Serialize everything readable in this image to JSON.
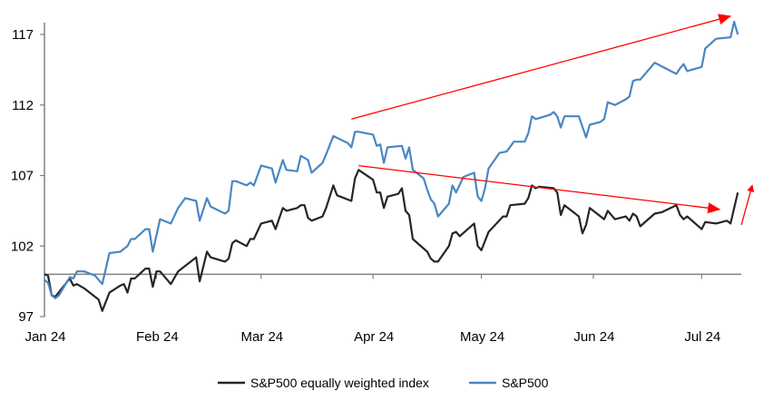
{
  "chart_data": {
    "type": "line",
    "title": "",
    "xlabel": "",
    "ylabel": "",
    "ylim": [
      97,
      118
    ],
    "xlim": [
      "2024-01-01",
      "2024-07-14"
    ],
    "yticks": [
      97,
      102,
      107,
      112,
      117
    ],
    "ytick_labels": [
      "97",
      "102",
      "107",
      "112",
      "117"
    ],
    "xticks": [
      "2024-01-01",
      "2024-02-01",
      "2024-03-01",
      "2024-04-01",
      "2024-05-01",
      "2024-06-01",
      "2024-07-01"
    ],
    "xtick_labels": [
      "Jan 24",
      "Feb 24",
      "Mar 24",
      "Apr 24",
      "May 24",
      "Jun 24",
      "Jul 24"
    ],
    "baseline": 100,
    "grid": false,
    "legend_position": "bottom",
    "series": [
      {
        "name": "S&P500 equally weighted index",
        "color": "#262626",
        "points": [
          [
            "2024-01-01",
            100.0
          ],
          [
            "2024-01-02",
            99.9
          ],
          [
            "2024-01-03",
            98.5
          ],
          [
            "2024-01-04",
            98.4
          ],
          [
            "2024-01-08",
            99.7
          ],
          [
            "2024-01-09",
            99.2
          ],
          [
            "2024-01-10",
            99.3
          ],
          [
            "2024-01-12",
            99.0
          ],
          [
            "2024-01-16",
            98.2
          ],
          [
            "2024-01-17",
            97.4
          ],
          [
            "2024-01-19",
            98.7
          ],
          [
            "2024-01-22",
            99.2
          ],
          [
            "2024-01-23",
            99.3
          ],
          [
            "2024-01-24",
            98.7
          ],
          [
            "2024-01-25",
            99.7
          ],
          [
            "2024-01-26",
            99.7
          ],
          [
            "2024-01-29",
            100.4
          ],
          [
            "2024-01-30",
            100.4
          ],
          [
            "2024-01-31",
            99.1
          ],
          [
            "2024-02-01",
            100.2
          ],
          [
            "2024-02-02",
            100.2
          ],
          [
            "2024-02-05",
            99.3
          ],
          [
            "2024-02-07",
            100.2
          ],
          [
            "2024-02-12",
            101.2
          ],
          [
            "2024-02-13",
            99.5
          ],
          [
            "2024-02-15",
            101.6
          ],
          [
            "2024-02-16",
            101.2
          ],
          [
            "2024-02-20",
            100.9
          ],
          [
            "2024-02-21",
            101.1
          ],
          [
            "2024-02-22",
            102.2
          ],
          [
            "2024-02-23",
            102.4
          ],
          [
            "2024-02-26",
            102.0
          ],
          [
            "2024-02-27",
            102.5
          ],
          [
            "2024-02-28",
            102.5
          ],
          [
            "2024-03-01",
            103.6
          ],
          [
            "2024-03-04",
            103.8
          ],
          [
            "2024-03-05",
            103.2
          ],
          [
            "2024-03-07",
            104.7
          ],
          [
            "2024-03-08",
            104.5
          ],
          [
            "2024-03-11",
            104.7
          ],
          [
            "2024-03-12",
            104.9
          ],
          [
            "2024-03-13",
            104.9
          ],
          [
            "2024-03-14",
            104.0
          ],
          [
            "2024-03-15",
            103.8
          ],
          [
            "2024-03-18",
            104.1
          ],
          [
            "2024-03-19",
            104.7
          ],
          [
            "2024-03-21",
            106.3
          ],
          [
            "2024-03-22",
            105.6
          ],
          [
            "2024-03-26",
            105.2
          ],
          [
            "2024-03-27",
            106.8
          ],
          [
            "2024-03-28",
            107.4
          ],
          [
            "2024-04-01",
            106.7
          ],
          [
            "2024-04-02",
            105.8
          ],
          [
            "2024-04-03",
            105.8
          ],
          [
            "2024-04-04",
            104.7
          ],
          [
            "2024-04-05",
            105.5
          ],
          [
            "2024-04-08",
            105.7
          ],
          [
            "2024-04-09",
            106.1
          ],
          [
            "2024-04-10",
            104.5
          ],
          [
            "2024-04-11",
            104.2
          ],
          [
            "2024-04-12",
            102.5
          ],
          [
            "2024-04-16",
            101.6
          ],
          [
            "2024-04-17",
            101.1
          ],
          [
            "2024-04-18",
            100.9
          ],
          [
            "2024-04-19",
            100.9
          ],
          [
            "2024-04-22",
            102.0
          ],
          [
            "2024-04-23",
            102.9
          ],
          [
            "2024-04-24",
            103.0
          ],
          [
            "2024-04-25",
            102.7
          ],
          [
            "2024-04-29",
            103.6
          ],
          [
            "2024-04-30",
            102.0
          ],
          [
            "2024-05-01",
            101.7
          ],
          [
            "2024-05-03",
            103.0
          ],
          [
            "2024-05-07",
            104.1
          ],
          [
            "2024-05-08",
            104.1
          ],
          [
            "2024-05-09",
            104.9
          ],
          [
            "2024-05-13",
            105.0
          ],
          [
            "2024-05-14",
            105.4
          ],
          [
            "2024-05-15",
            106.3
          ],
          [
            "2024-05-16",
            106.1
          ],
          [
            "2024-05-17",
            106.2
          ],
          [
            "2024-05-21",
            106.1
          ],
          [
            "2024-05-22",
            105.8
          ],
          [
            "2024-05-23",
            104.2
          ],
          [
            "2024-05-24",
            104.9
          ],
          [
            "2024-05-28",
            104.1
          ],
          [
            "2024-05-29",
            102.9
          ],
          [
            "2024-05-30",
            103.5
          ],
          [
            "2024-05-31",
            104.7
          ],
          [
            "2024-06-04",
            103.9
          ],
          [
            "2024-06-05",
            104.5
          ],
          [
            "2024-06-07",
            103.9
          ],
          [
            "2024-06-10",
            104.1
          ],
          [
            "2024-06-11",
            103.8
          ],
          [
            "2024-06-12",
            104.3
          ],
          [
            "2024-06-13",
            104.1
          ],
          [
            "2024-06-14",
            103.4
          ],
          [
            "2024-06-18",
            104.3
          ],
          [
            "2024-06-20",
            104.4
          ],
          [
            "2024-06-24",
            104.9
          ],
          [
            "2024-06-25",
            104.2
          ],
          [
            "2024-06-26",
            103.9
          ],
          [
            "2024-06-27",
            104.1
          ],
          [
            "2024-07-01",
            103.2
          ],
          [
            "2024-07-02",
            103.7
          ],
          [
            "2024-07-05",
            103.6
          ],
          [
            "2024-07-08",
            103.8
          ],
          [
            "2024-07-09",
            103.6
          ],
          [
            "2024-07-11",
            105.8
          ]
        ]
      },
      {
        "name": "S&P500",
        "color": "#4a87c2",
        "points": [
          [
            "2024-01-01",
            99.6
          ],
          [
            "2024-01-02",
            99.4
          ],
          [
            "2024-01-03",
            98.5
          ],
          [
            "2024-01-04",
            98.3
          ],
          [
            "2024-01-05",
            98.5
          ],
          [
            "2024-01-08",
            99.8
          ],
          [
            "2024-01-09",
            99.7
          ],
          [
            "2024-01-10",
            100.2
          ],
          [
            "2024-01-12",
            100.2
          ],
          [
            "2024-01-15",
            99.9
          ],
          [
            "2024-01-17",
            99.3
          ],
          [
            "2024-01-19",
            101.5
          ],
          [
            "2024-01-22",
            101.6
          ],
          [
            "2024-01-24",
            102.0
          ],
          [
            "2024-01-25",
            102.5
          ],
          [
            "2024-01-26",
            102.5
          ],
          [
            "2024-01-29",
            103.2
          ],
          [
            "2024-01-30",
            103.2
          ],
          [
            "2024-01-31",
            101.6
          ],
          [
            "2024-02-02",
            103.9
          ],
          [
            "2024-02-05",
            103.6
          ],
          [
            "2024-02-07",
            104.7
          ],
          [
            "2024-02-09",
            105.4
          ],
          [
            "2024-02-12",
            105.2
          ],
          [
            "2024-02-13",
            103.8
          ],
          [
            "2024-02-15",
            105.4
          ],
          [
            "2024-02-16",
            104.8
          ],
          [
            "2024-02-20",
            104.3
          ],
          [
            "2024-02-21",
            104.5
          ],
          [
            "2024-02-22",
            106.6
          ],
          [
            "2024-02-23",
            106.6
          ],
          [
            "2024-02-26",
            106.3
          ],
          [
            "2024-02-27",
            106.5
          ],
          [
            "2024-02-28",
            106.3
          ],
          [
            "2024-03-01",
            107.7
          ],
          [
            "2024-03-04",
            107.5
          ],
          [
            "2024-03-05",
            106.5
          ],
          [
            "2024-03-07",
            108.1
          ],
          [
            "2024-03-08",
            107.4
          ],
          [
            "2024-03-11",
            107.3
          ],
          [
            "2024-03-12",
            108.4
          ],
          [
            "2024-03-14",
            108.1
          ],
          [
            "2024-03-15",
            107.2
          ],
          [
            "2024-03-18",
            107.9
          ],
          [
            "2024-03-19",
            108.5
          ],
          [
            "2024-03-21",
            109.8
          ],
          [
            "2024-03-25",
            109.3
          ],
          [
            "2024-03-26",
            109.0
          ],
          [
            "2024-03-27",
            110.1
          ],
          [
            "2024-03-28",
            110.1
          ],
          [
            "2024-04-01",
            109.9
          ],
          [
            "2024-04-02",
            109.1
          ],
          [
            "2024-04-03",
            109.2
          ],
          [
            "2024-04-04",
            107.9
          ],
          [
            "2024-04-05",
            109.0
          ],
          [
            "2024-04-09",
            109.1
          ],
          [
            "2024-04-10",
            108.2
          ],
          [
            "2024-04-11",
            109.0
          ],
          [
            "2024-04-12",
            107.4
          ],
          [
            "2024-04-15",
            106.8
          ],
          [
            "2024-04-16",
            106.0
          ],
          [
            "2024-04-17",
            105.3
          ],
          [
            "2024-04-18",
            105.0
          ],
          [
            "2024-04-19",
            104.1
          ],
          [
            "2024-04-22",
            105.0
          ],
          [
            "2024-04-23",
            106.3
          ],
          [
            "2024-04-24",
            105.8
          ],
          [
            "2024-04-26",
            106.9
          ],
          [
            "2024-04-29",
            107.2
          ],
          [
            "2024-04-30",
            105.5
          ],
          [
            "2024-05-01",
            105.2
          ],
          [
            "2024-05-02",
            106.1
          ],
          [
            "2024-05-03",
            107.5
          ],
          [
            "2024-05-06",
            108.6
          ],
          [
            "2024-05-08",
            108.7
          ],
          [
            "2024-05-10",
            109.4
          ],
          [
            "2024-05-13",
            109.4
          ],
          [
            "2024-05-14",
            110.0
          ],
          [
            "2024-05-15",
            111.2
          ],
          [
            "2024-05-16",
            111.0
          ],
          [
            "2024-05-20",
            111.3
          ],
          [
            "2024-05-21",
            111.5
          ],
          [
            "2024-05-22",
            111.2
          ],
          [
            "2024-05-23",
            110.4
          ],
          [
            "2024-05-24",
            111.2
          ],
          [
            "2024-05-28",
            111.2
          ],
          [
            "2024-05-30",
            109.7
          ],
          [
            "2024-05-31",
            110.6
          ],
          [
            "2024-06-03",
            110.8
          ],
          [
            "2024-06-04",
            111.0
          ],
          [
            "2024-06-05",
            112.2
          ],
          [
            "2024-06-07",
            112.0
          ],
          [
            "2024-06-10",
            112.4
          ],
          [
            "2024-06-11",
            112.6
          ],
          [
            "2024-06-12",
            113.7
          ],
          [
            "2024-06-13",
            113.8
          ],
          [
            "2024-06-14",
            113.8
          ],
          [
            "2024-06-18",
            115.0
          ],
          [
            "2024-06-24",
            114.2
          ],
          [
            "2024-06-25",
            114.6
          ],
          [
            "2024-06-26",
            114.9
          ],
          [
            "2024-06-27",
            114.4
          ],
          [
            "2024-07-01",
            114.7
          ],
          [
            "2024-07-02",
            116.0
          ],
          [
            "2024-07-05",
            116.7
          ],
          [
            "2024-07-09",
            116.8
          ],
          [
            "2024-07-10",
            117.9
          ],
          [
            "2024-07-11",
            117.0
          ]
        ]
      }
    ],
    "annotations": [
      {
        "type": "arrow",
        "color": "#ff0000",
        "from": [
          "2024-03-26",
          111.0
        ],
        "to": [
          "2024-07-09",
          118.3
        ]
      },
      {
        "type": "arrow",
        "color": "#ff0000",
        "from": [
          "2024-03-28",
          107.7
        ],
        "to": [
          "2024-07-06",
          104.6
        ]
      },
      {
        "type": "arrow",
        "color": "#ff0000",
        "from": [
          "2024-07-12",
          103.5
        ],
        "to": [
          "2024-07-15",
          106.3
        ]
      }
    ],
    "axis_color": "#808080"
  }
}
